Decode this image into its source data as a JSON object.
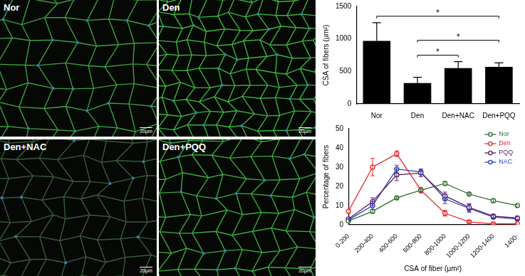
{
  "panels": [
    {
      "label": "Nor",
      "scale_bar": "20μm"
    },
    {
      "label": "Den",
      "scale_bar": "20μm"
    },
    {
      "label": "Den+NAC",
      "scale_bar": "20μm"
    },
    {
      "label": "Den+PQQ",
      "scale_bar": "20μm"
    }
  ],
  "chart_data": [
    {
      "type": "bar",
      "categories": [
        "Nor",
        "Den",
        "Den+NAC",
        "Den+PQQ"
      ],
      "values": [
        970,
        320,
        550,
        570
      ],
      "errors": [
        280,
        90,
        100,
        60
      ],
      "color": "#000000",
      "y_label": "CSA of fibers (μm²)",
      "ylim": [
        0,
        1500
      ],
      "yticks": [
        0,
        500,
        1000,
        1500
      ],
      "grid": false,
      "significance": [
        {
          "from": "Nor",
          "to": "Den+PQQ",
          "label": "*"
        },
        {
          "from": "Den",
          "to": "Den+PQQ",
          "label": "*"
        },
        {
          "from": "Den",
          "to": "Den+NAC",
          "label": "*"
        }
      ]
    },
    {
      "type": "line",
      "categories": [
        "0-200",
        "200-400",
        "400-600",
        "600-800",
        "800-1000",
        "1000-1200",
        "1200-1400",
        "1400-"
      ],
      "x_label": "CSA of fiber (μm²)",
      "y_label": "Percentage of fibers",
      "ylim": [
        0,
        50
      ],
      "yticks": [
        0,
        10,
        20,
        30,
        40,
        50
      ],
      "grid": false,
      "legend": "upper right",
      "series": [
        {
          "name": "Nor",
          "color": "#2e6b2e",
          "marker": "circle",
          "values": [
            2,
            7,
            14,
            18,
            21.5,
            16,
            12.5,
            10
          ],
          "errors": [
            0.5,
            1,
            0.5,
            0.5,
            1,
            0.5,
            1,
            0.5
          ]
        },
        {
          "name": "Den",
          "color": "#e8262a",
          "marker": "circle",
          "values": [
            7,
            30,
            37,
            18,
            6,
            1.5,
            0.5,
            0.5
          ],
          "errors": [
            1,
            4.5,
            1.5,
            1.5,
            1.5,
            0.5,
            0.3,
            0.3
          ]
        },
        {
          "name": "PQQ",
          "color": "#5b1a5e",
          "marker": "circle",
          "values": [
            3,
            12,
            26,
            27,
            15,
            9,
            4.5,
            3.5
          ],
          "errors": [
            0.5,
            2,
            3,
            2,
            2,
            2,
            1,
            1
          ]
        },
        {
          "name": "NAC",
          "color": "#2b3fb8",
          "marker": "circle",
          "values": [
            2.5,
            10,
            29,
            27.5,
            13.5,
            8.5,
            4,
            3
          ],
          "errors": [
            0.5,
            2,
            2,
            1.5,
            2.5,
            2,
            1,
            1
          ]
        }
      ]
    }
  ]
}
